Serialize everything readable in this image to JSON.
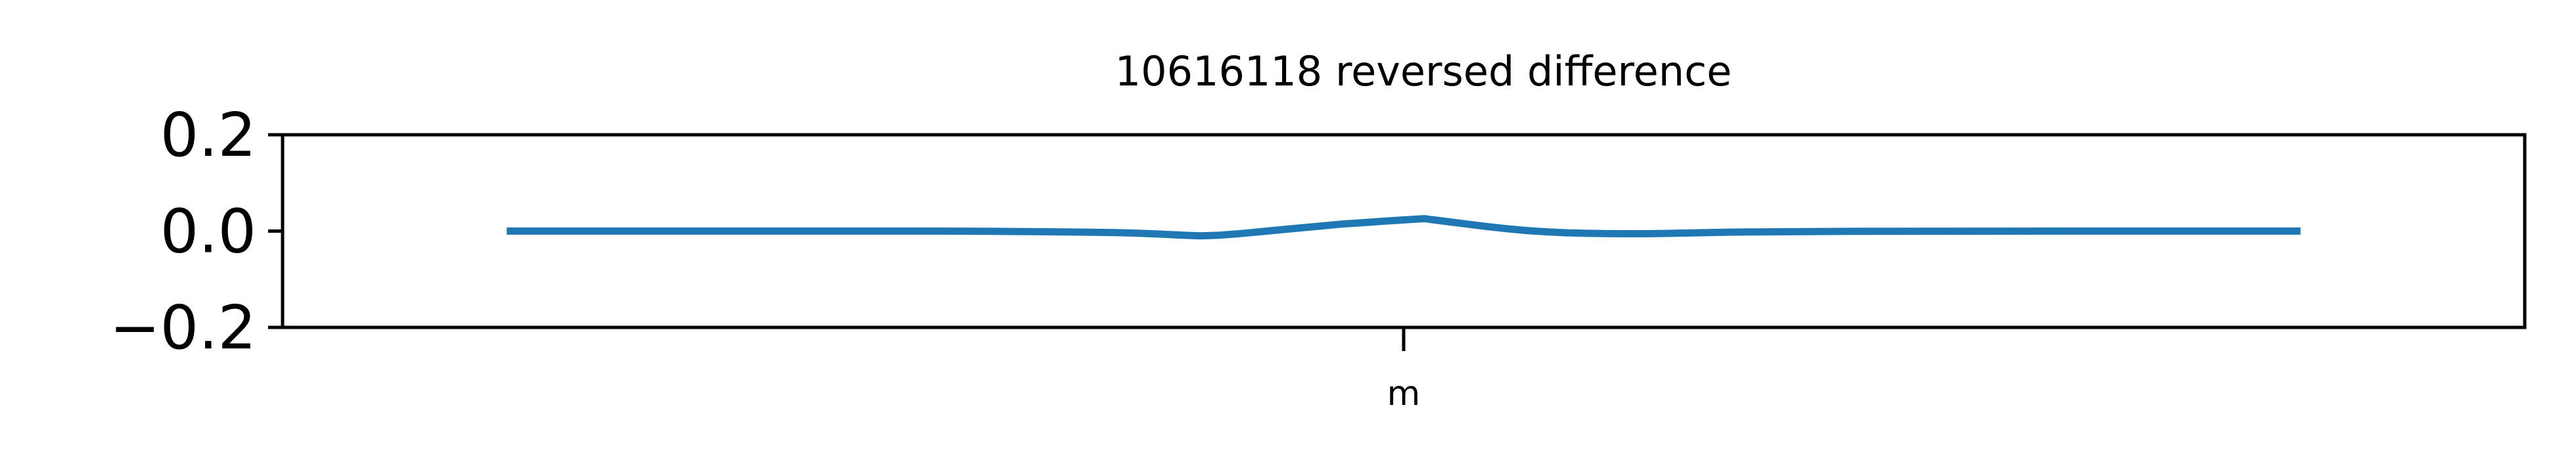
{
  "chart_data": {
    "type": "line",
    "title": "10616118 reversed difference",
    "xlabel": "",
    "ylabel": "",
    "ylim": [
      -0.2,
      0.2
    ],
    "xlim": [
      -55,
      55
    ],
    "grid": false,
    "legend": "none",
    "yticks": [
      {
        "value": 0.2,
        "label": "0.2"
      },
      {
        "value": 0.0,
        "label": "0.0"
      },
      {
        "value": -0.2,
        "label": "−0.2"
      }
    ],
    "xticks": [
      {
        "value": 0,
        "label": "m"
      }
    ],
    "series": [
      {
        "color": "#1f77b4",
        "x": [
          -44,
          -40,
          -35,
          -30,
          -25,
          -22,
          -20,
          -18,
          -16,
          -15,
          -14,
          -13,
          -12,
          -11,
          -10,
          -9,
          -8,
          -7,
          -6,
          -5,
          -4,
          -3,
          -2,
          -1,
          0,
          1,
          2,
          3,
          4,
          5,
          6,
          7,
          8,
          9,
          10,
          11,
          12,
          13,
          14,
          15,
          16,
          18,
          20,
          22,
          25,
          30,
          35,
          40,
          44
        ],
        "y": [
          0.0,
          0.0,
          0.0,
          0.0,
          0.0,
          -0.0002,
          -0.0006,
          -0.0012,
          -0.002,
          -0.0026,
          -0.0033,
          -0.0045,
          -0.0062,
          -0.0082,
          -0.0098,
          -0.0085,
          -0.0052,
          -0.0012,
          0.0028,
          0.0068,
          0.0108,
          0.0148,
          0.0175,
          0.0205,
          0.0232,
          0.0258,
          0.0205,
          0.0152,
          0.0098,
          0.0052,
          0.0012,
          -0.0015,
          -0.0035,
          -0.0046,
          -0.0053,
          -0.0055,
          -0.0055,
          -0.0048,
          -0.004,
          -0.003,
          -0.0022,
          -0.0015,
          -0.001,
          -0.0006,
          -0.0003,
          -0.0001,
          0.0,
          0.0,
          0.0
        ]
      }
    ]
  }
}
